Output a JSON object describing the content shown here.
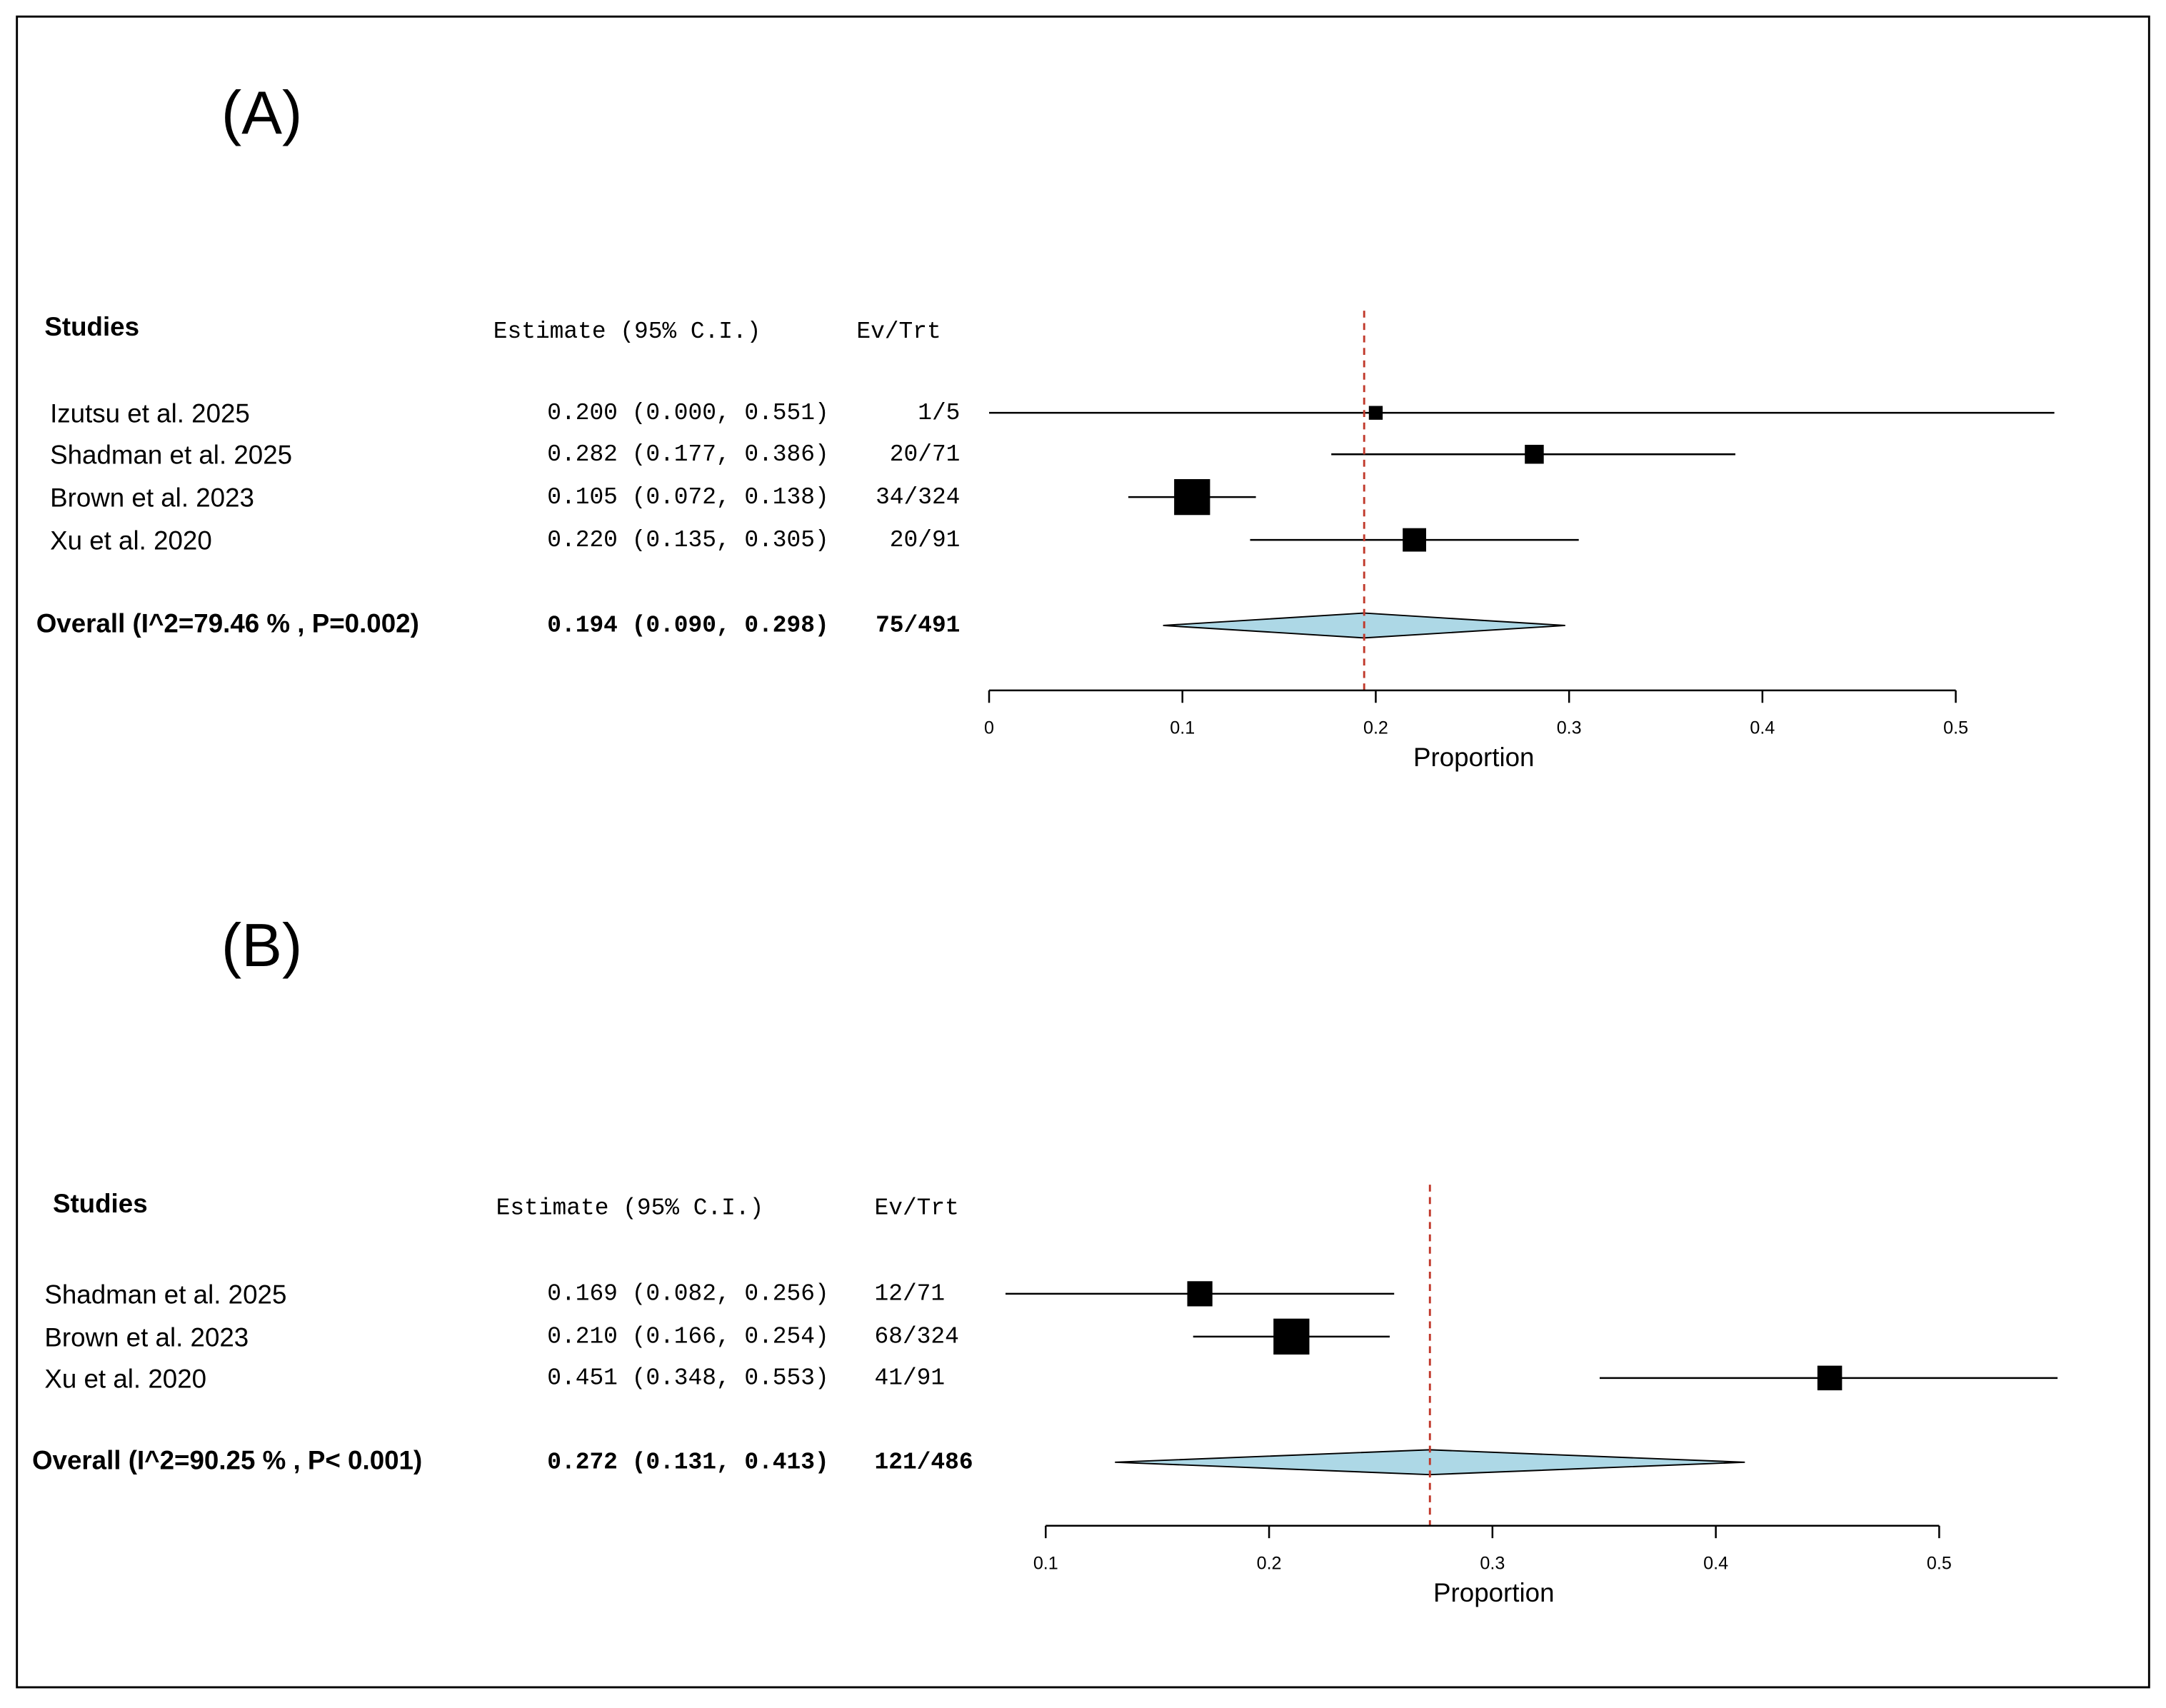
{
  "chart_data": [
    {
      "type": "forest",
      "panel_label": "(A)",
      "header_studies": "Studies",
      "header_estimate": "Estimate (95% C.I.)",
      "header_ev_trt": "Ev/Trt",
      "categories": [
        "Izutsu et al. 2025",
        "Shadman et al. 2025",
        "Brown et al. 2023",
        "Xu et al. 2020"
      ],
      "values": [
        0.2,
        0.282,
        0.105,
        0.22
      ],
      "lower": [
        0.0,
        0.177,
        0.072,
        0.135
      ],
      "upper": [
        0.551,
        0.386,
        0.138,
        0.305
      ],
      "value_labels": [
        "0.200 (0.000, 0.551)",
        "0.282 (0.177, 0.386)",
        "0.105 (0.072, 0.138)",
        "0.220 (0.135, 0.305)"
      ],
      "ev_trt": [
        "1/5",
        "20/71",
        "34/324",
        "20/91"
      ],
      "weights": [
        8,
        15,
        54,
        23
      ],
      "overall_label": "Overall (I^2=79.46 % , P=0.002)",
      "overall_value": 0.194,
      "overall_lower": 0.09,
      "overall_upper": 0.298,
      "overall_value_label": "0.194 (0.090, 0.298)",
      "overall_ev_trt": "75/491",
      "xlabel": "Proportion",
      "xlim": [
        0,
        0.5
      ],
      "xticks": [
        0,
        0.1,
        0.2,
        0.3,
        0.4,
        0.5
      ],
      "color": "#000000",
      "diamond_color": "#add8e6",
      "reference_color": "#c0392b"
    },
    {
      "type": "forest",
      "panel_label": "(B)",
      "header_studies": "Studies",
      "header_estimate": "Estimate (95% C.I.)",
      "header_ev_trt": "Ev/Trt",
      "categories": [
        "Shadman et al. 2025",
        "Brown et al. 2023",
        "Xu et al. 2020"
      ],
      "values": [
        0.169,
        0.21,
        0.451
      ],
      "lower": [
        0.082,
        0.166,
        0.348
      ],
      "upper": [
        0.256,
        0.254,
        0.553
      ],
      "value_labels": [
        "0.169 (0.082, 0.256)",
        "0.210 (0.166, 0.254)",
        "0.451 (0.348, 0.553)"
      ],
      "ev_trt": [
        "12/71",
        "68/324",
        "41/91"
      ],
      "weights": [
        25,
        51,
        24
      ],
      "overall_label": "Overall (I^2=90.25 % , P< 0.001)",
      "overall_value": 0.272,
      "overall_lower": 0.131,
      "overall_upper": 0.413,
      "overall_value_label": "0.272 (0.131, 0.413)",
      "overall_ev_trt": "121/486",
      "xlabel": "Proportion",
      "xlim": [
        0.1,
        0.5
      ],
      "xticks": [
        0.1,
        0.2,
        0.3,
        0.4,
        0.5
      ],
      "color": "#000000",
      "diamond_color": "#add8e6",
      "reference_color": "#c0392b"
    }
  ]
}
